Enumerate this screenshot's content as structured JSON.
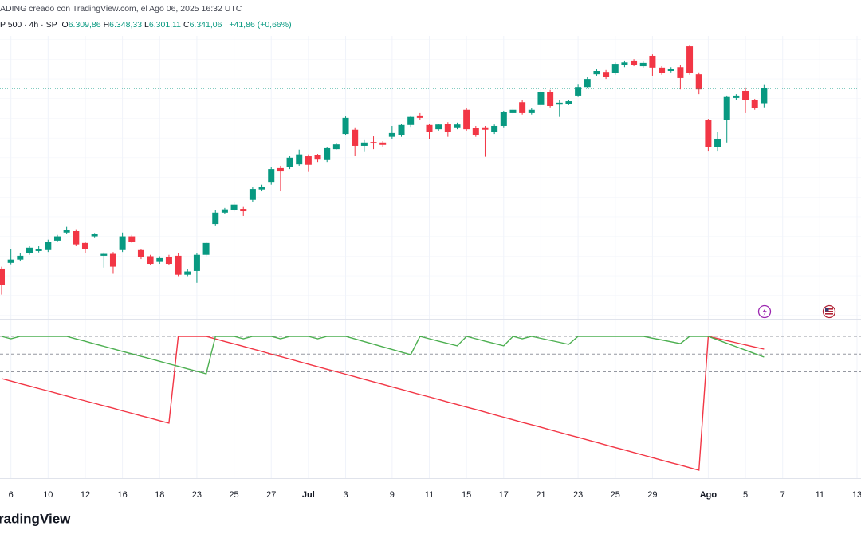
{
  "header": {
    "watermark": "ADING creado con TradingView.com, el Ago 06, 2025 16:32 UTC",
    "symbol": "P 500 · 4h · SP",
    "ohlc": [
      {
        "key": "O",
        "value": "6.309,86"
      },
      {
        "key": "H",
        "value": "6.348,33"
      },
      {
        "key": "L",
        "value": "6.301,11"
      },
      {
        "key": "C",
        "value": "6.341,06"
      }
    ],
    "change": "+41,86 (+0,66%)"
  },
  "logo": "radingView",
  "chart_data": [
    {
      "type": "candlestick",
      "up_color": "#089981",
      "down_color": "#f23645",
      "ylim": [
        5855,
        6452
      ],
      "last_price_line": true,
      "grid": true,
      "categories": [
        null,
        "6",
        null,
        null,
        null,
        "10",
        null,
        null,
        null,
        "12",
        null,
        null,
        null,
        "16",
        null,
        null,
        null,
        "18",
        null,
        null,
        null,
        "23",
        null,
        null,
        null,
        "25",
        null,
        null,
        null,
        "27",
        null,
        null,
        null,
        "Jul",
        null,
        null,
        null,
        "3",
        null,
        null,
        null,
        null,
        "9",
        null,
        null,
        null,
        "11",
        null,
        null,
        null,
        "15",
        null,
        null,
        null,
        "17",
        null,
        null,
        null,
        "21",
        null,
        null,
        null,
        "23",
        null,
        null,
        null,
        "25",
        null,
        null,
        null,
        "29",
        null,
        null,
        null,
        null,
        null,
        "Ago",
        null,
        null,
        null,
        "5",
        null,
        null,
        null,
        "7",
        null,
        null,
        null,
        "11",
        null,
        null,
        null,
        "13"
      ],
      "open": [
        5961,
        5973,
        5980,
        5993,
        5998,
        6000,
        6020,
        6037,
        6040,
        6015,
        6029,
        5988,
        5992,
        6000,
        6029,
        6000,
        5987,
        5975,
        5985,
        5988,
        5948,
        5956,
        5990,
        6055,
        6079,
        6084,
        6087,
        6106,
        6128,
        6144,
        6173,
        6175,
        6181,
        6198,
        6200,
        6190,
        6213,
        6245,
        6254,
        6220,
        6228,
        6227,
        6239,
        6242,
        6264,
        6284,
        6264,
        6255,
        6267,
        6259,
        6296,
        6257,
        6259,
        6249,
        6262,
        6289,
        6312,
        6289,
        6306,
        6334,
        6307,
        6309,
        6326,
        6344,
        6371,
        6376,
        6373,
        6390,
        6400,
        6388,
        6410,
        6385,
        6378,
        6386,
        6430,
        6371,
        6274,
        6218,
        6275,
        6321,
        6336,
        6316,
        6309.86,
        null,
        null,
        null,
        null,
        null,
        null,
        null,
        null,
        null,
        null
      ],
      "high": [
        5965,
        6003,
        5993,
        6008,
        6008,
        6022,
        6032,
        6049,
        6044,
        6018,
        6036,
        5995,
        5996,
        6037,
        6032,
        6003,
        5990,
        5987,
        5990,
        5993,
        5960,
        5993,
        6018,
        6084,
        6089,
        6101,
        6091,
        6133,
        6138,
        6175,
        6178,
        6198,
        6212,
        6202,
        6203,
        6218,
        6225,
        6282,
        6259,
        6232,
        6240,
        6230,
        6262,
        6267,
        6284,
        6289,
        6267,
        6267,
        6270,
        6269,
        6299,
        6262,
        6262,
        6265,
        6294,
        6301,
        6316,
        6299,
        6338,
        6338,
        6316,
        6317,
        6349,
        6365,
        6383,
        6380,
        6396,
        6400,
        6403,
        6398,
        6413,
        6388,
        6386,
        6390,
        6432,
        6375,
        6277,
        6249,
        6326,
        6329,
        6343,
        6319,
        6348.33,
        null,
        null,
        null,
        null,
        null,
        null,
        null,
        null,
        null,
        null
      ],
      "low": [
        5906,
        5970,
        5976,
        5990,
        5995,
        5996,
        6017,
        6034,
        6008,
        5993,
        6027,
        5963,
        5950,
        5996,
        6015,
        5981,
        5968,
        5971,
        5968,
        5945,
        5945,
        5931,
        5987,
        6052,
        6076,
        6081,
        6072,
        6102,
        6124,
        6138,
        6124,
        6171,
        6178,
        6165,
        6186,
        6186,
        6212,
        6242,
        6198,
        6207,
        6213,
        6218,
        6235,
        6239,
        6260,
        6275,
        6235,
        6252,
        6239,
        6255,
        6252,
        6239,
        6197,
        6245,
        6259,
        6286,
        6286,
        6286,
        6302,
        6301,
        6281,
        6306,
        6323,
        6341,
        6368,
        6361,
        6370,
        6386,
        6388,
        6385,
        6368,
        6370,
        6375,
        6339,
        6370,
        6329,
        6208,
        6208,
        6227,
        6317,
        6289,
        6296,
        6301.11,
        null,
        null,
        null,
        null,
        null,
        null,
        null,
        null,
        null,
        null
      ],
      "close": [
        5926,
        5980,
        5988,
        6005,
        6003,
        6017,
        6029,
        6042,
        6012,
        6003,
        6034,
        5992,
        5965,
        6029,
        6018,
        5985,
        5971,
        5983,
        5971,
        5948,
        5955,
        5990,
        6015,
        6079,
        6086,
        6096,
        6082,
        6129,
        6134,
        6171,
        6166,
        6195,
        6202,
        6180,
        6191,
        6215,
        6223,
        6279,
        6220,
        6227,
        6225,
        6222,
        6247,
        6264,
        6281,
        6279,
        6249,
        6265,
        6250,
        6265,
        6255,
        6242,
        6254,
        6262,
        6291,
        6296,
        6289,
        6296,
        6334,
        6304,
        6311,
        6314,
        6344,
        6361,
        6378,
        6365,
        6393,
        6396,
        6391,
        6395,
        6385,
        6373,
        6383,
        6363,
        6373,
        6339,
        6218,
        6235,
        6323,
        6326,
        6316,
        6299,
        6341.06,
        null,
        null,
        null,
        null,
        null,
        null,
        null,
        null,
        null,
        null
      ]
    },
    {
      "type": "line",
      "ylim": [
        0,
        100
      ],
      "levels": [
        100,
        87.5,
        75
      ],
      "series": [
        {
          "color": "#f23645",
          "values": [
            70.2,
            68.5,
            66.7,
            65.0,
            63.2,
            61.5,
            59.7,
            58.0,
            56.2,
            54.5,
            52.8,
            51.0,
            49.3,
            47.5,
            45.8,
            44.0,
            42.3,
            40.5,
            38.8,
            100,
            100,
            100,
            100,
            98.2,
            96.4,
            94.7,
            92.9,
            91.1,
            89.3,
            87.5,
            85.8,
            84.0,
            82.2,
            80.4,
            78.6,
            76.8,
            75.1,
            73.3,
            71.5,
            69.7,
            67.9,
            66.2,
            64.4,
            62.6,
            60.8,
            59.0,
            57.3,
            55.5,
            53.7,
            51.9,
            50.1,
            48.4,
            46.6,
            44.8,
            43.0,
            41.2,
            39.4,
            37.7,
            35.9,
            34.1,
            32.3,
            30.5,
            28.8,
            27.0,
            25.2,
            23.4,
            21.6,
            19.9,
            18.1,
            16.3,
            14.5,
            12.7,
            10.9,
            9.2,
            7.4,
            5.6,
            100,
            98.5,
            97.0,
            95.5,
            94.0,
            92.5,
            91.0,
            null,
            null,
            null,
            null,
            null,
            null,
            null,
            null,
            null,
            null
          ]
        },
        {
          "color": "#4caf50",
          "values": [
            100,
            98.3,
            100,
            100,
            100,
            100,
            100,
            100,
            98.2,
            96.5,
            94.7,
            93.0,
            91.2,
            89.4,
            87.7,
            85.9,
            84.2,
            82.4,
            80.6,
            78.9,
            77.1,
            75.4,
            73.6,
            100,
            100,
            100,
            98.3,
            100,
            100,
            100,
            98.3,
            100,
            100,
            100,
            98.3,
            100,
            100,
            100,
            98.2,
            96.3,
            94.5,
            92.6,
            90.8,
            88.9,
            87.1,
            100,
            98.3,
            96.6,
            95.0,
            93.3,
            100,
            98.3,
            96.6,
            95.0,
            93.3,
            100,
            98.3,
            100,
            98.6,
            97.2,
            95.8,
            94.4,
            100,
            100,
            100,
            100,
            100,
            100,
            100,
            100,
            98.7,
            97.5,
            96.2,
            94.9,
            100,
            100,
            100,
            97.6,
            95.1,
            92.7,
            90.3,
            87.8,
            85.4,
            null,
            null,
            null,
            null,
            null,
            null,
            null,
            null,
            null,
            null
          ]
        }
      ]
    }
  ]
}
